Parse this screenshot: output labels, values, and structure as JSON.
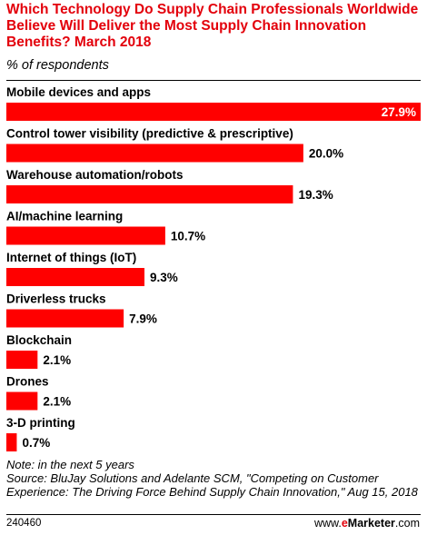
{
  "header": {
    "title": "Which Technology Do Supply Chain Professionals Worldwide Believe Will Deliver the Most Supply Chain Innovation Benefits? March 2018",
    "subtitle": "% of respondents"
  },
  "chart_data": {
    "type": "bar",
    "orientation": "horizontal",
    "categories": [
      "Mobile devices and apps",
      "Control tower visibility (predictive & prescriptive)",
      "Warehouse automation/robots",
      "AI/machine learning",
      "Internet of things (IoT)",
      "Driverless trucks",
      "Blockchain",
      "Drones",
      "3-D printing"
    ],
    "values": [
      27.9,
      20.0,
      19.3,
      10.7,
      9.3,
      7.9,
      2.1,
      2.1,
      0.7
    ],
    "value_labels": [
      "27.9%",
      "20.0%",
      "19.3%",
      "10.7%",
      "9.3%",
      "7.9%",
      "2.1%",
      "2.1%",
      "0.7%"
    ],
    "xlim": [
      0,
      27.9
    ],
    "bar_color": "#ff0000",
    "grid": false,
    "legend": false
  },
  "footer": {
    "note": "Note: in the next 5 years",
    "source": "Source: BluJay Solutions and Adelante SCM, \"Competing on Customer Experience: The Driving Force Behind Supply Chain Innovation,\" Aug 15, 2018",
    "chart_id": "240460",
    "brand_prefix": "www.",
    "brand_e": "e",
    "brand_name": "Marketer",
    "brand_suffix": ".com"
  },
  "colors": {
    "title": "#e3000b",
    "bar": "#ff0000",
    "inside_label": "#ffffff",
    "outside_label": "#000000"
  }
}
